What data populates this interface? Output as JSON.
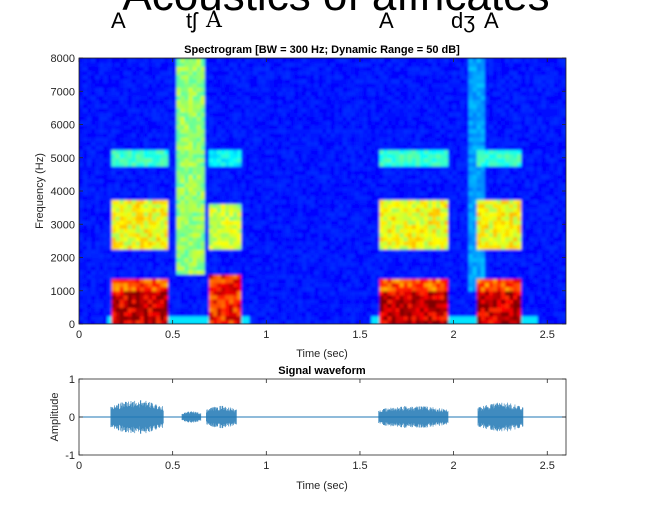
{
  "slide": {
    "title": "Acoustics of affricates",
    "phonetic_labels": [
      "A",
      "tʃ",
      "A",
      "A",
      "dʒ",
      "A"
    ]
  },
  "chart_data": [
    {
      "type": "heatmap",
      "title": "Spectrogram [BW = 300 Hz; Dynamic Range = 50 dB]",
      "xlabel": "Time (sec)",
      "ylabel": "Frequency (Hz)",
      "xlim": [
        0,
        2.6
      ],
      "ylim": [
        0,
        8000
      ],
      "x_ticks": [
        0,
        0.5,
        1,
        1.5,
        2,
        2.5
      ],
      "x_tick_labels": [
        "0",
        "0.5",
        "1",
        "1.5",
        "2",
        "2.5"
      ],
      "y_ticks": [
        0,
        1000,
        2000,
        3000,
        4000,
        5000,
        6000,
        7000,
        8000
      ],
      "y_tick_labels": [
        "0",
        "1000",
        "2000",
        "3000",
        "4000",
        "5000",
        "6000",
        "7000",
        "8000"
      ],
      "colormap": "jet",
      "grid": false,
      "energy_regions": [
        {
          "t": [
            0.17,
            0.47
          ],
          "f": [
            0,
            1000
          ],
          "level": 1.0
        },
        {
          "t": [
            0.17,
            0.47
          ],
          "f": [
            1000,
            1400
          ],
          "level": 0.85
        },
        {
          "t": [
            0.17,
            0.47
          ],
          "f": [
            2300,
            3700
          ],
          "level": 0.65
        },
        {
          "t": [
            0.17,
            0.47
          ],
          "f": [
            4800,
            5300
          ],
          "level": 0.45
        },
        {
          "t": [
            0.53,
            0.67
          ],
          "f": [
            1500,
            8000
          ],
          "level": 0.55
        },
        {
          "t": [
            0.7,
            0.86
          ],
          "f": [
            0,
            1500
          ],
          "level": 0.9
        },
        {
          "t": [
            0.7,
            0.86
          ],
          "f": [
            2300,
            3600
          ],
          "level": 0.6
        },
        {
          "t": [
            0.7,
            0.86
          ],
          "f": [
            4800,
            5200
          ],
          "level": 0.4
        },
        {
          "t": [
            1.6,
            1.97
          ],
          "f": [
            0,
            1000
          ],
          "level": 1.0
        },
        {
          "t": [
            1.6,
            1.97
          ],
          "f": [
            1000,
            1400
          ],
          "level": 0.85
        },
        {
          "t": [
            1.6,
            1.97
          ],
          "f": [
            2300,
            3700
          ],
          "level": 0.65
        },
        {
          "t": [
            1.6,
            1.97
          ],
          "f": [
            4800,
            5300
          ],
          "level": 0.45
        },
        {
          "t": [
            2.07,
            2.16
          ],
          "f": [
            1000,
            8000
          ],
          "level": 0.3
        },
        {
          "t": [
            2.13,
            2.37
          ],
          "f": [
            0,
            1000
          ],
          "level": 1.0
        },
        {
          "t": [
            2.13,
            2.37
          ],
          "f": [
            1000,
            1400
          ],
          "level": 0.85
        },
        {
          "t": [
            2.13,
            2.37
          ],
          "f": [
            2300,
            3700
          ],
          "level": 0.65
        },
        {
          "t": [
            2.13,
            2.37
          ],
          "f": [
            4800,
            5300
          ],
          "level": 0.45
        }
      ]
    },
    {
      "type": "line",
      "title": "Signal waveform",
      "xlabel": "Time (sec)",
      "ylabel": "Amplitude",
      "xlim": [
        0,
        2.6
      ],
      "ylim": [
        -1,
        1
      ],
      "x_ticks": [
        0,
        0.5,
        1,
        1.5,
        2,
        2.5
      ],
      "x_tick_labels": [
        "0",
        "0.5",
        "1",
        "1.5",
        "2",
        "2.5"
      ],
      "y_ticks": [
        -1,
        0,
        1
      ],
      "y_tick_labels": [
        "-1",
        "0",
        "1"
      ],
      "color": "#1f77b4",
      "envelope": [
        {
          "t": [
            0.17,
            0.45
          ],
          "amp": 0.45
        },
        {
          "t": [
            0.55,
            0.65
          ],
          "amp": 0.15
        },
        {
          "t": [
            0.68,
            0.84
          ],
          "amp": 0.3
        },
        {
          "t": [
            1.6,
            1.97
          ],
          "amp": 0.3
        },
        {
          "t": [
            2.13,
            2.37
          ],
          "amp": 0.4
        }
      ]
    }
  ]
}
